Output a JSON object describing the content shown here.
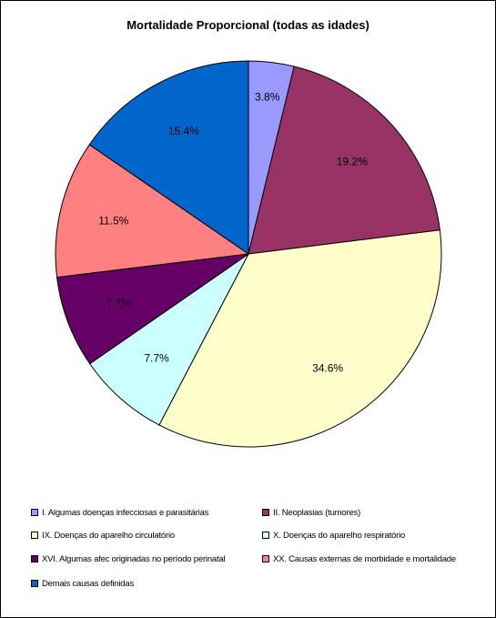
{
  "chart_data": {
    "type": "pie",
    "title": "Mortalidade Proporcional (todas as idades)",
    "start_angle": "top",
    "direction": "clockwise",
    "slices": [
      {
        "name": "I.  Algumas doenças infecciosas e parasitárias",
        "value": 3.8,
        "label": "3.8%",
        "color": "#9999ff"
      },
      {
        "name": "II.  Neoplasias (tumores)",
        "value": 19.2,
        "label": "19.2%",
        "color": "#993366"
      },
      {
        "name": "IX.  Doenças do aparelho circulatório",
        "value": 34.6,
        "label": "34.6%",
        "color": "#ffffcc"
      },
      {
        "name": "X.   Doenças do aparelho respiratório",
        "value": 7.7,
        "label": "7.7%",
        "color": "#ccffff"
      },
      {
        "name": "XVI. Algumas afec originadas no período perinatal",
        "value": 7.7,
        "label": "7.7%",
        "color": "#660066"
      },
      {
        "name": "XX.  Causas externas de morbidade e mortalidade",
        "value": 11.5,
        "label": "11.5%",
        "color": "#ff8080"
      },
      {
        "name": "Demais causas definidas",
        "value": 15.4,
        "label": "15.4%",
        "color": "#0066cc"
      }
    ],
    "legend_position": "bottom"
  }
}
